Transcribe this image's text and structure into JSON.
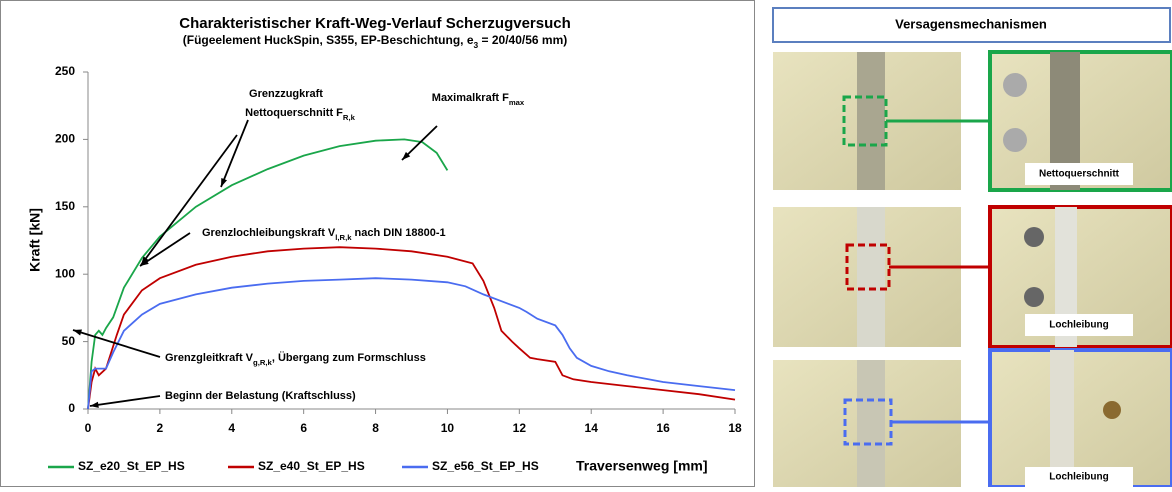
{
  "chart_data": {
    "type": "line",
    "title": "Charakteristischer Kraft-Weg-Verlauf Scherzugversuch",
    "subtitle": {
      "text": "(Fügeelement HuckSpin, S355, EP-Beschichtung, e",
      "sub": "3",
      "tail": " = 20/40/56 mm)"
    },
    "x_label": "Traversenweg [mm]",
    "y_label": "Kraft [kN]",
    "xlim": [
      0,
      18
    ],
    "xticks": [
      0,
      2,
      4,
      6,
      8,
      10,
      12,
      14,
      16,
      18
    ],
    "ylim": [
      0,
      250
    ],
    "yticks": [
      0,
      50,
      100,
      150,
      200,
      250
    ],
    "grid": false,
    "legend": "bottom",
    "series": [
      {
        "name": "SZ_e20_St_EP_HS",
        "color": "#1aa64a",
        "x": [
          0,
          0.1,
          0.2,
          0.3,
          0.4,
          0.5,
          0.7,
          1.0,
          1.5,
          2,
          3,
          4,
          5,
          6,
          7,
          8,
          8.8,
          9.3,
          9.7,
          10
        ],
        "values": [
          0,
          35,
          55,
          58,
          55,
          60,
          68,
          90,
          112,
          128,
          150,
          166,
          178,
          188,
          195,
          199,
          200,
          198,
          190,
          177
        ]
      },
      {
        "name": "SZ_e40_St_EP_HS",
        "color": "#c00000",
        "x": [
          0,
          0.1,
          0.2,
          0.3,
          0.5,
          0.8,
          1,
          1.5,
          2,
          3,
          4,
          5,
          6,
          7,
          8,
          9,
          10,
          10.7,
          11,
          11.3,
          11.5,
          11.8,
          12,
          12.3,
          12.5,
          13,
          13.2,
          13.5,
          14,
          15,
          16,
          17,
          18
        ],
        "values": [
          0,
          20,
          30,
          25,
          30,
          55,
          70,
          88,
          97,
          107,
          113,
          117,
          119,
          120,
          119,
          117,
          113,
          108,
          95,
          75,
          58,
          50,
          45,
          38,
          37,
          35,
          25,
          22,
          20,
          17,
          14,
          11,
          7
        ]
      },
      {
        "name": "SZ_e56_St_EP_HS",
        "color": "#4a6cf0",
        "x": [
          0,
          0.1,
          0.2,
          0.5,
          0.7,
          1,
          1.5,
          2,
          3,
          4,
          5,
          6,
          7,
          8,
          9,
          10,
          10.5,
          11,
          11.5,
          12,
          12.2,
          12.5,
          13,
          13.2,
          13.4,
          13.6,
          14,
          14.5,
          15,
          16,
          17,
          18
        ],
        "values": [
          0,
          28,
          30,
          30,
          42,
          58,
          70,
          78,
          85,
          90,
          93,
          95,
          96,
          97,
          96,
          94,
          91,
          85,
          80,
          75,
          72,
          67,
          62,
          55,
          45,
          38,
          32,
          28,
          25,
          20,
          17,
          14
        ]
      }
    ],
    "annotations": [
      {
        "text": "Grenzzugkraft"
      },
      {
        "text": "Nettoquerschnitt F",
        "sub": "R,k"
      },
      {
        "text": "Maximalkraft F",
        "sub": "max"
      },
      {
        "text": "Grenzlochleibungskraft V",
        "sub": "l,R,k",
        "tail": " nach DIN 18800-1"
      },
      {
        "text": "Grenzgleitkraft V",
        "sub": "g,R,k",
        "tail": ", Übergang zum Formschluss"
      },
      {
        "text": "Beginn der Belastung (Kraftschluss)"
      }
    ]
  },
  "panel": {
    "title": "Versagensmechanismen",
    "labels": [
      "Nettoquerschnitt",
      "Lochleibung",
      "Lochleibung"
    ]
  }
}
